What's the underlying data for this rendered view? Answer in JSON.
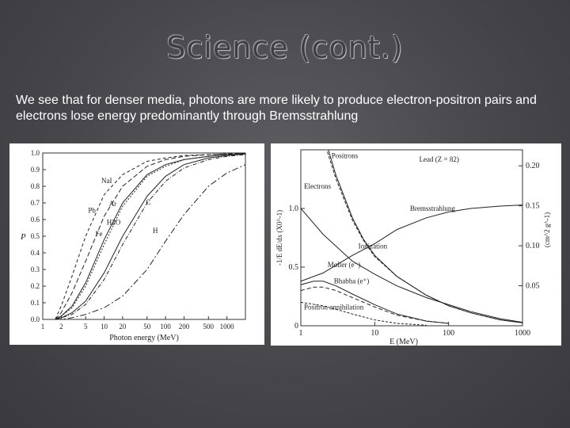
{
  "slide": {
    "title": "Science (cont.)",
    "body": "We see that for denser media, photons are more likely to produce electron-positron pairs and electrons lose energy predominantly through Bremsstrahlung"
  },
  "chart_data": [
    {
      "type": "line",
      "xlabel": "Photon energy (MeV)",
      "ylabel": "P",
      "x_scale": "log",
      "xlim": [
        1,
        2000
      ],
      "ylim": [
        0,
        1.0
      ],
      "x_ticks": [
        "1",
        "2",
        "5",
        "10",
        "20",
        "50",
        "100",
        "200",
        "500",
        "1000"
      ],
      "y_ticks": [
        "0.0",
        "0.1",
        "0.2",
        "0.3",
        "0.4",
        "0.5",
        "0.6",
        "0.7",
        "0.8",
        "0.9",
        "1.0"
      ],
      "series": [
        {
          "name": "Pb",
          "x": [
            1.6,
            2,
            3,
            5,
            10,
            20,
            50,
            100,
            200,
            500,
            1000,
            2000
          ],
          "y": [
            0.0,
            0.08,
            0.26,
            0.5,
            0.75,
            0.87,
            0.95,
            0.97,
            0.985,
            0.99,
            0.995,
            0.998
          ]
        },
        {
          "name": "NaI",
          "x": [
            1.6,
            2,
            3,
            5,
            10,
            20,
            50,
            100,
            200,
            500,
            1000,
            2000
          ],
          "y": [
            0.0,
            0.04,
            0.16,
            0.35,
            0.62,
            0.8,
            0.92,
            0.96,
            0.98,
            0.99,
            0.995,
            0.998
          ]
        },
        {
          "name": "Fe",
          "x": [
            1.6,
            2,
            3,
            5,
            10,
            20,
            50,
            100,
            200,
            500,
            1000,
            2000
          ],
          "y": [
            0.0,
            0.02,
            0.08,
            0.22,
            0.48,
            0.7,
            0.87,
            0.93,
            0.96,
            0.98,
            0.99,
            0.995
          ]
        },
        {
          "name": "Ar",
          "x": [
            1.6,
            2,
            3,
            5,
            10,
            20,
            50,
            100,
            200,
            500,
            1000,
            2000
          ],
          "y": [
            0.0,
            0.02,
            0.07,
            0.2,
            0.45,
            0.68,
            0.86,
            0.92,
            0.96,
            0.98,
            0.99,
            0.995
          ]
        },
        {
          "name": "H2O",
          "x": [
            1.6,
            2,
            3,
            5,
            10,
            20,
            50,
            100,
            200,
            500,
            1000,
            2000
          ],
          "y": [
            0.0,
            0.01,
            0.03,
            0.09,
            0.24,
            0.45,
            0.7,
            0.83,
            0.91,
            0.96,
            0.98,
            0.99
          ]
        },
        {
          "name": "C",
          "x": [
            1.6,
            2,
            3,
            5,
            10,
            20,
            50,
            100,
            200,
            500,
            1000,
            2000
          ],
          "y": [
            0.0,
            0.01,
            0.04,
            0.11,
            0.28,
            0.5,
            0.74,
            0.86,
            0.93,
            0.97,
            0.985,
            0.995
          ]
        },
        {
          "name": "H",
          "x": [
            1.6,
            2,
            3,
            5,
            10,
            20,
            50,
            100,
            200,
            500,
            1000,
            2000
          ],
          "y": [
            0.0,
            0.0,
            0.01,
            0.03,
            0.07,
            0.14,
            0.3,
            0.47,
            0.63,
            0.8,
            0.88,
            0.93
          ]
        }
      ],
      "annotations": [
        "NaI",
        "Pb",
        "Ar",
        "C",
        "H2O",
        "Fe",
        "H"
      ]
    },
    {
      "type": "line",
      "xlabel": "E (MeV)",
      "ylabel_left": "-1/E dE/dx (X0^-1)",
      "ylabel_right": "(cm^2 g^-1)",
      "x_scale": "log",
      "xlim": [
        1,
        1000
      ],
      "ylim_left": [
        0,
        1.5
      ],
      "ylim_right": [
        0,
        0.22
      ],
      "x_ticks": [
        "1",
        "10",
        "100",
        "1000"
      ],
      "y_ticks_left": [
        "0",
        "0.5",
        "1.0"
      ],
      "y_ticks_right": [
        "0.05",
        "0.10",
        "0.15",
        "0.20"
      ],
      "annotations": [
        "Positrons",
        "Lead (Z = 82)",
        "Electrons",
        "Bremsstrahlung",
        "Ionization",
        "Møller (e⁻)",
        "Bhabha (e⁺)",
        "Positron annihilation"
      ],
      "series": [
        {
          "name": "Electrons",
          "x": [
            2,
            3,
            5,
            7,
            10,
            20,
            50,
            100,
            200,
            500,
            1000
          ],
          "y": [
            1.65,
            1.28,
            0.92,
            0.74,
            0.6,
            0.42,
            0.26,
            0.17,
            0.11,
            0.05,
            0.025
          ]
        },
        {
          "name": "Positrons",
          "x": [
            2,
            3,
            5,
            7,
            10,
            20,
            50,
            100,
            200,
            500,
            1000
          ],
          "y": [
            1.6,
            1.25,
            0.9,
            0.73,
            0.59,
            0.42,
            0.26,
            0.17,
            0.11,
            0.05,
            0.025
          ]
        },
        {
          "name": "Bremsstrahlung",
          "x": [
            1,
            2,
            5,
            10,
            20,
            50,
            100,
            200,
            500,
            1000
          ],
          "y": [
            0.38,
            0.45,
            0.6,
            0.7,
            0.82,
            0.92,
            0.97,
            1.0,
            1.02,
            1.03
          ]
        },
        {
          "name": "Ionization",
          "x": [
            1,
            2,
            5,
            10,
            20,
            50,
            100,
            200,
            500,
            1000
          ],
          "y": [
            1.0,
            0.78,
            0.55,
            0.44,
            0.34,
            0.24,
            0.18,
            0.12,
            0.06,
            0.03
          ]
        },
        {
          "name": "Møller (e⁻)",
          "x": [
            1,
            1.5,
            2,
            3,
            5,
            10,
            20,
            50,
            100
          ],
          "y": [
            0.35,
            0.38,
            0.38,
            0.34,
            0.27,
            0.18,
            0.1,
            0.04,
            0.02
          ]
        },
        {
          "name": "Bhabha (e⁺)",
          "x": [
            1,
            1.5,
            2,
            3,
            5,
            10,
            20,
            50,
            100
          ],
          "y": [
            0.3,
            0.33,
            0.33,
            0.3,
            0.24,
            0.16,
            0.09,
            0.04,
            0.02
          ]
        },
        {
          "name": "Positron annihilation",
          "x": [
            1,
            2,
            3,
            5,
            10,
            20,
            50
          ],
          "y": [
            0.2,
            0.17,
            0.14,
            0.1,
            0.05,
            0.02,
            0.005
          ]
        }
      ]
    }
  ]
}
